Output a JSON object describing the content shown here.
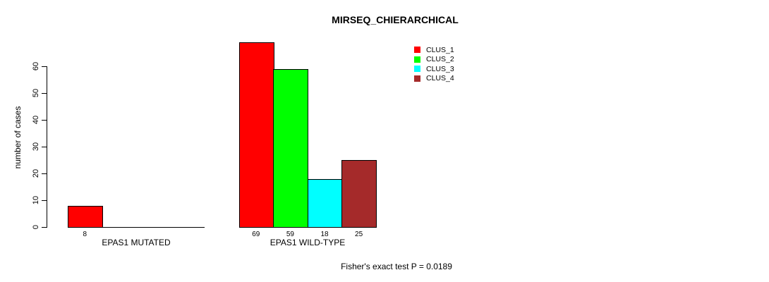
{
  "chart_data": {
    "type": "bar",
    "title": "MIRSEQ_CHIERARCHICAL",
    "ylabel": "number of cases",
    "yticks": [
      0,
      10,
      20,
      30,
      40,
      50,
      60
    ],
    "ylim": [
      0,
      69
    ],
    "grid": false,
    "legend_position": "top-right",
    "categories": [
      "EPAS1 MUTATED",
      "EPAS1 WILD-TYPE"
    ],
    "series": [
      {
        "name": "CLUS_1",
        "color": "#ff0000",
        "values": [
          8,
          69
        ]
      },
      {
        "name": "CLUS_2",
        "color": "#00ff00",
        "values": [
          0,
          59
        ]
      },
      {
        "name": "CLUS_3",
        "color": "#00ffff",
        "values": [
          0,
          18
        ]
      },
      {
        "name": "CLUS_4",
        "color": "#a52a2a",
        "values": [
          0,
          25
        ]
      }
    ],
    "groups": [
      {
        "label": "EPAS1 MUTATED",
        "values": [
          8,
          0,
          0,
          0
        ],
        "value_labels": [
          "8"
        ]
      },
      {
        "label": "EPAS1 WILD-TYPE",
        "values": [
          69,
          59,
          18,
          25
        ],
        "value_labels": [
          "69",
          "59",
          "18",
          "25"
        ]
      }
    ],
    "footnote": "Fisher's exact test P = 0.0189"
  },
  "colors": {
    "bar_border": "#000000",
    "axis": "#000000",
    "background": "#ffffff"
  }
}
